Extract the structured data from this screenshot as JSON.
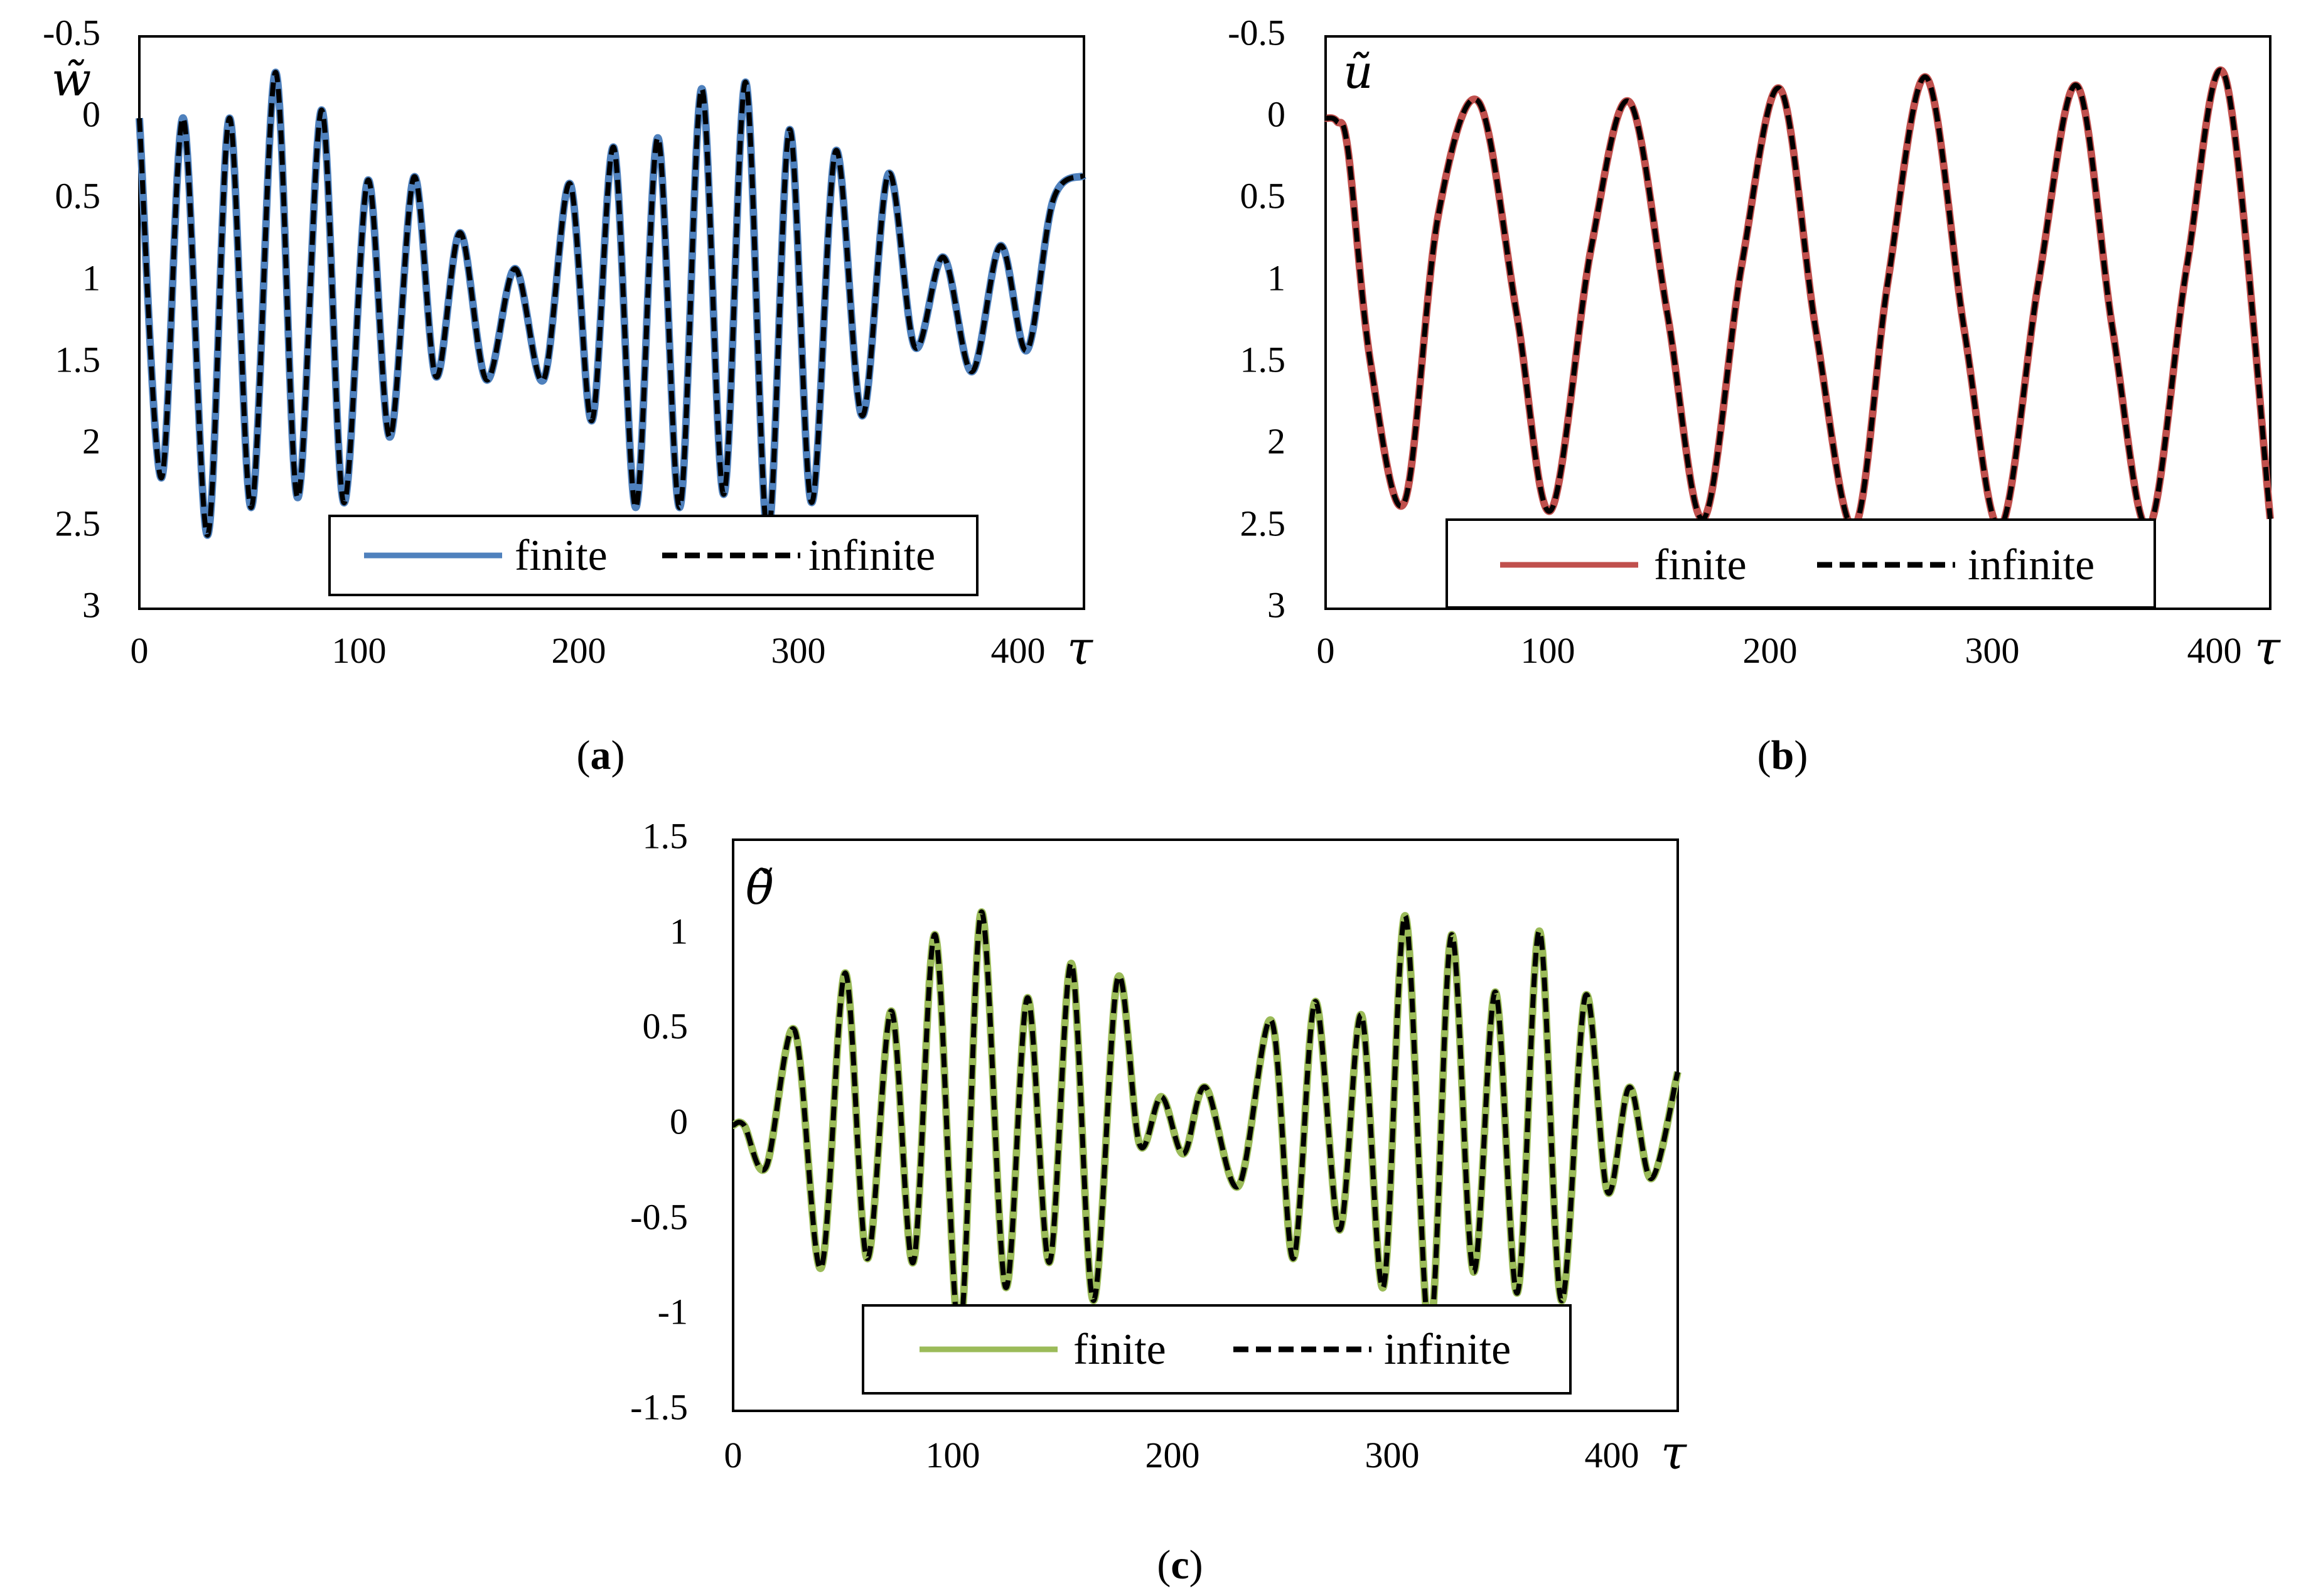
{
  "chart_data": [
    {
      "type": "line",
      "panel": "a",
      "ylabel": "w̃",
      "xlabel": "τ",
      "caption_letter": "a",
      "xlim": [
        0,
        430
      ],
      "ylim": [
        -0.5,
        3
      ],
      "y_inverted": true,
      "xticks": [
        "0",
        "100",
        "200",
        "300",
        "400"
      ],
      "yticks": [
        "-0.5",
        "0",
        "0.5",
        "1",
        "1.5",
        "2",
        "2.5",
        "3"
      ],
      "legend": [
        "finite",
        "infinite"
      ],
      "legend_location": "bottom-right",
      "series": [
        {
          "name": "finite",
          "color": "#4f81bd",
          "style": "solid"
        },
        {
          "name": "infinite",
          "color": "#000000",
          "style": "dashed"
        }
      ],
      "x": [
        0,
        10,
        20,
        31,
        41,
        51,
        62,
        72,
        83,
        93,
        104,
        114,
        125,
        135,
        146,
        158,
        171,
        184,
        196,
        206,
        216,
        226,
        236,
        246,
        256,
        266,
        276,
        286,
        296,
        306,
        317,
        329,
        341,
        353,
        366,
        379,
        392,
        404,
        416,
        430
      ],
      "y": [
        0,
        2.2,
        0,
        2.55,
        0,
        2.38,
        -0.28,
        2.32,
        -0.05,
        2.35,
        0.38,
        1.95,
        0.36,
        1.58,
        0.7,
        1.6,
        0.92,
        1.6,
        0.4,
        1.85,
        0.18,
        2.38,
        0.12,
        2.38,
        -0.18,
        2.3,
        -0.22,
        2.55,
        0.07,
        2.35,
        0.2,
        1.82,
        0.34,
        1.4,
        0.85,
        1.55,
        0.78,
        1.42,
        0.5,
        0.35
      ]
    },
    {
      "type": "line",
      "panel": "b",
      "ylabel": "ũ",
      "xlabel": "τ",
      "caption_letter": "b",
      "xlim": [
        0,
        420
      ],
      "ylim": [
        -0.5,
        3
      ],
      "y_inverted": true,
      "xticks": [
        "0",
        "100",
        "200",
        "300",
        "400"
      ],
      "yticks": [
        "-0.5",
        "0",
        "0.5",
        "1",
        "1.5",
        "2",
        "2.5",
        "3"
      ],
      "legend": [
        "finite",
        "infinite"
      ],
      "legend_location": "bottom-right",
      "series": [
        {
          "name": "finite",
          "color": "#c0504d",
          "style": "solid"
        },
        {
          "name": "infinite",
          "color": "#000000",
          "style": "dashed"
        }
      ],
      "x": [
        0,
        5,
        10,
        20,
        35,
        50,
        68,
        85,
        100,
        118,
        135,
        152,
        168,
        185,
        202,
        218,
        235,
        250,
        267,
        284,
        300,
        317,
        334,
        350,
        366,
        383,
        400,
        420
      ],
      "y": [
        0,
        0.02,
        0.2,
        1.5,
        2.35,
        0.6,
        -0.1,
        1.2,
        2.4,
        0.8,
        -0.1,
        1.2,
        2.45,
        0.9,
        -0.18,
        1.3,
        2.5,
        1.0,
        -0.25,
        1.3,
        2.5,
        1.0,
        -0.2,
        1.3,
        2.5,
        0.9,
        -0.25,
        2.45
      ]
    },
    {
      "type": "line",
      "panel": "c",
      "ylabel": "θ̃",
      "xlabel": "τ",
      "caption_letter": "c",
      "xlim": [
        0,
        430
      ],
      "ylim": [
        -1.5,
        1.5
      ],
      "y_inverted": false,
      "xticks": [
        "0",
        "100",
        "200",
        "300",
        "400"
      ],
      "yticks": [
        "1.5",
        "1",
        "0.5",
        "0",
        "-0.5",
        "-1",
        "-1.5"
      ],
      "legend": [
        "finite",
        "infinite"
      ],
      "legend_location": "bottom-right",
      "series": [
        {
          "name": "finite",
          "color": "#9bbb59",
          "style": "solid"
        },
        {
          "name": "infinite",
          "color": "#000000",
          "style": "dashed"
        }
      ],
      "x": [
        0,
        5,
        15,
        28,
        40,
        51,
        61,
        72,
        82,
        92,
        103,
        113,
        124,
        134,
        144,
        154,
        164,
        175,
        185,
        195,
        205,
        215,
        230,
        245,
        255,
        265,
        276,
        286,
        296,
        306,
        317,
        327,
        337,
        347,
        357,
        367,
        377,
        388,
        398,
        408,
        418,
        430
      ],
      "y": [
        0,
        0,
        -0.22,
        0.5,
        -0.75,
        0.8,
        -0.7,
        0.6,
        -0.72,
        1.0,
        -1.1,
        1.12,
        -0.85,
        0.67,
        -0.72,
        0.85,
        -0.92,
        0.77,
        -0.1,
        0.15,
        -0.15,
        0.2,
        -0.32,
        0.55,
        -0.7,
        0.65,
        -0.55,
        0.58,
        -0.85,
        1.1,
        -1.1,
        1.0,
        -0.77,
        0.7,
        -0.88,
        1.02,
        -0.92,
        0.68,
        -0.35,
        0.2,
        -0.28,
        0.28
      ]
    }
  ]
}
